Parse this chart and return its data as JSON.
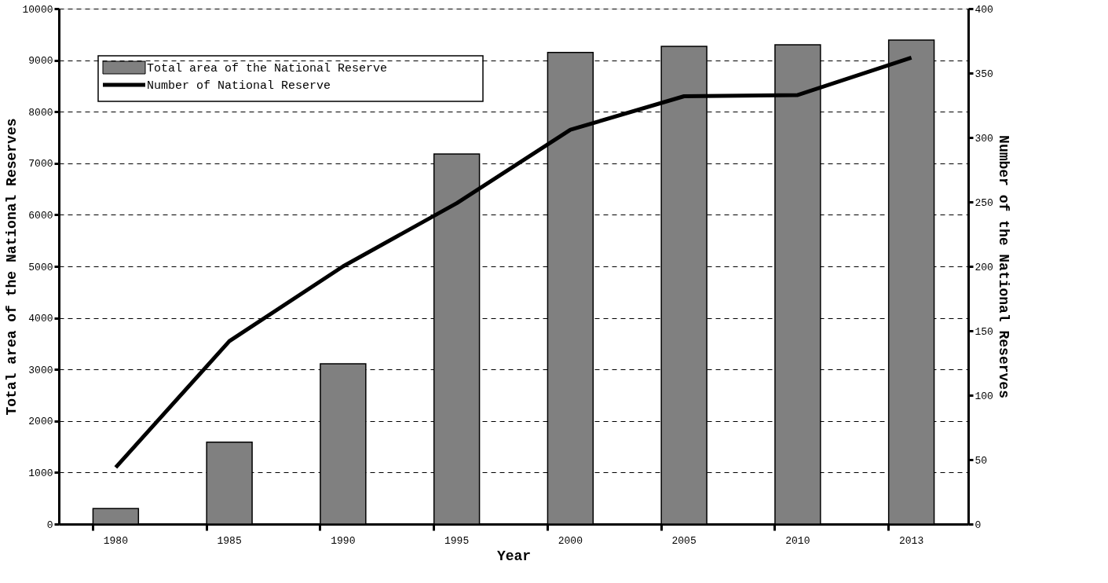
{
  "chart_data": {
    "type": "bar",
    "xlabel": "Year",
    "ylabel": "Total area of the National Reserves",
    "y2label": "Number of the National Reserves",
    "categories": [
      "1980",
      "1985",
      "1990",
      "1995",
      "2000",
      "2005",
      "2010",
      "2013"
    ],
    "series": [
      {
        "name": "Total area of the National Reserve",
        "color": "#808080",
        "values": [
          300,
          1590,
          3110,
          7180,
          9150,
          9270,
          9300,
          9390
        ]
      },
      {
        "name": "Number of National Reserve",
        "type": "line",
        "axis": "y2",
        "color": "#000000",
        "line_style": "solid",
        "values": [
          44,
          142,
          200,
          249,
          306,
          332,
          333,
          362
        ]
      }
    ],
    "ylim": [
      0,
      10000
    ],
    "yticks": [
      0,
      1000,
      2000,
      3000,
      4000,
      5000,
      6000,
      7000,
      8000,
      9000,
      10000
    ],
    "y2lim": [
      0,
      400
    ],
    "y2ticks": [
      0,
      50,
      100,
      150,
      200,
      250,
      300,
      350,
      400
    ],
    "grid": "y",
    "legend": "top left"
  }
}
